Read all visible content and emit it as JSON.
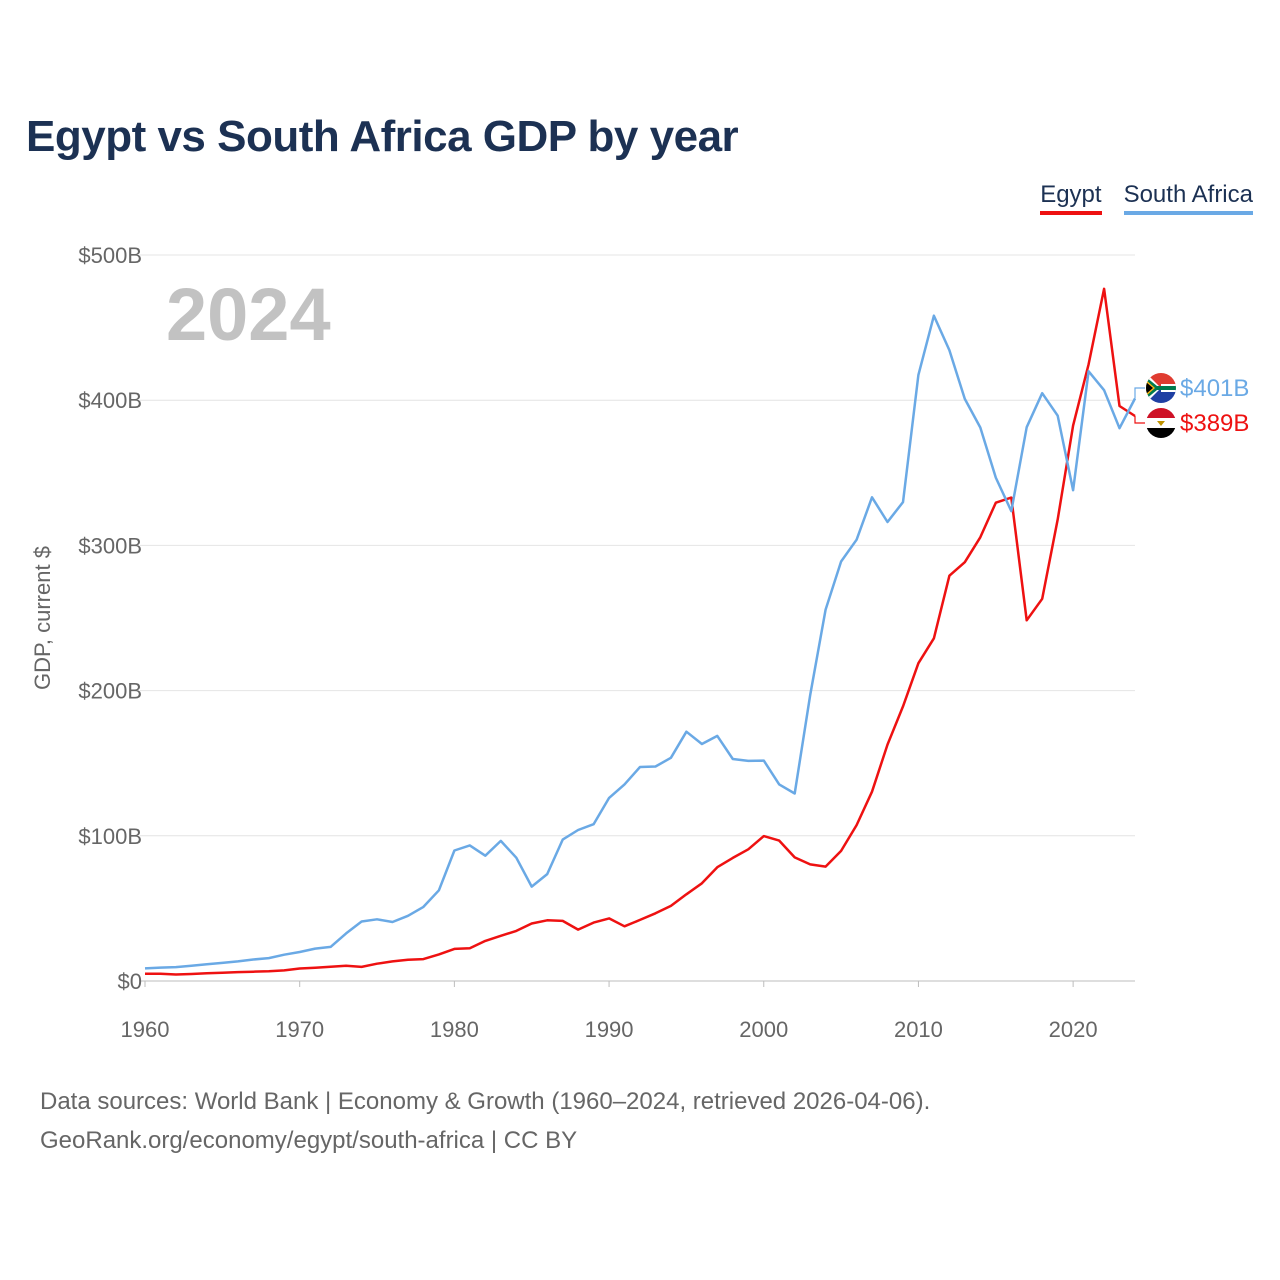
{
  "title": "Egypt vs South Africa GDP by year",
  "year_label": "2024",
  "legend": [
    {
      "name": "Egypt",
      "color": "#ee1111"
    },
    {
      "name": "South Africa",
      "color": "#6aa9e5"
    }
  ],
  "end_labels": {
    "south_africa": "$401B",
    "egypt": "$389B"
  },
  "footer": {
    "line1": "Data sources: World Bank | Economy & Growth (1960–2024, retrieved 2026-04-06).",
    "line2": "GeoRank.org/economy/egypt/south-africa | CC BY"
  },
  "chart_data": {
    "type": "line",
    "title": "Egypt vs South Africa GDP by year",
    "xlabel": "",
    "ylabel": "GDP, current $",
    "xlim": [
      1960,
      2024
    ],
    "ylim": [
      0,
      500
    ],
    "y_unit": "billions of current USD",
    "x_ticks": [
      "1960",
      "1970",
      "1980",
      "1990",
      "2000",
      "2010",
      "2020"
    ],
    "y_ticks": [
      "$0",
      "$100B",
      "$200B",
      "$300B",
      "$400B",
      "$500B"
    ],
    "grid": true,
    "legend_position": "top-right",
    "x": [
      1960,
      1961,
      1962,
      1963,
      1964,
      1965,
      1966,
      1967,
      1968,
      1969,
      1970,
      1971,
      1972,
      1973,
      1974,
      1975,
      1976,
      1977,
      1978,
      1979,
      1980,
      1981,
      1982,
      1983,
      1984,
      1985,
      1986,
      1987,
      1988,
      1989,
      1990,
      1991,
      1992,
      1993,
      1994,
      1995,
      1996,
      1997,
      1998,
      1999,
      2000,
      2001,
      2002,
      2003,
      2004,
      2005,
      2006,
      2007,
      2008,
      2009,
      2010,
      2011,
      2012,
      2013,
      2014,
      2015,
      2016,
      2017,
      2018,
      2019,
      2020,
      2021,
      2022,
      2023,
      2024
    ],
    "series": [
      {
        "name": "Egypt",
        "color": "#ee1111",
        "values": [
          5,
          5,
          4.5,
          4.8,
          5.3,
          5.7,
          6.1,
          6.4,
          6.7,
          7.3,
          8.6,
          9.1,
          9.8,
          10.5,
          9.7,
          11.9,
          13.5,
          14.7,
          15.1,
          18.3,
          22.1,
          22.5,
          27.6,
          31.1,
          34.5,
          39.6,
          41.8,
          41.4,
          35.4,
          40.2,
          43.1,
          37.7,
          42.1,
          46.6,
          51.7,
          59.7,
          67.3,
          78.4,
          84.8,
          90.7,
          99.8,
          96.7,
          85.1,
          80.3,
          78.8,
          89.6,
          107.4,
          130.4,
          162.8,
          189.1,
          218.9,
          236.0,
          279.1,
          288.4,
          305.6,
          329.4,
          332.9,
          248.4,
          263.2,
          317.9,
          382.5,
          424.7,
          476.7,
          396.0,
          389.1
        ]
      },
      {
        "name": "South Africa",
        "color": "#6aa9e5",
        "values": [
          8.7,
          9.2,
          9.6,
          10.5,
          11.5,
          12.5,
          13.5,
          14.8,
          15.8,
          18.1,
          20.0,
          22.3,
          23.5,
          32.8,
          41.0,
          42.5,
          40.6,
          44.9,
          51.0,
          62.5,
          89.9,
          93.4,
          86.3,
          96.5,
          84.9,
          65.0,
          73.6,
          97.4,
          104.0,
          108.0,
          126.1,
          135.4,
          147.4,
          147.7,
          153.7,
          171.7,
          163.2,
          168.8,
          152.9,
          151.6,
          151.8,
          135.4,
          129.1,
          197.0,
          255.8,
          288.9,
          303.9,
          333.1,
          316.1,
          329.8,
          417.4,
          458.2,
          434.4,
          400.9,
          381.2,
          346.7,
          323.6,
          381.4,
          404.8,
          389.3,
          338.0,
          419.9,
          406.9,
          380.7,
          401.2
        ]
      }
    ]
  }
}
